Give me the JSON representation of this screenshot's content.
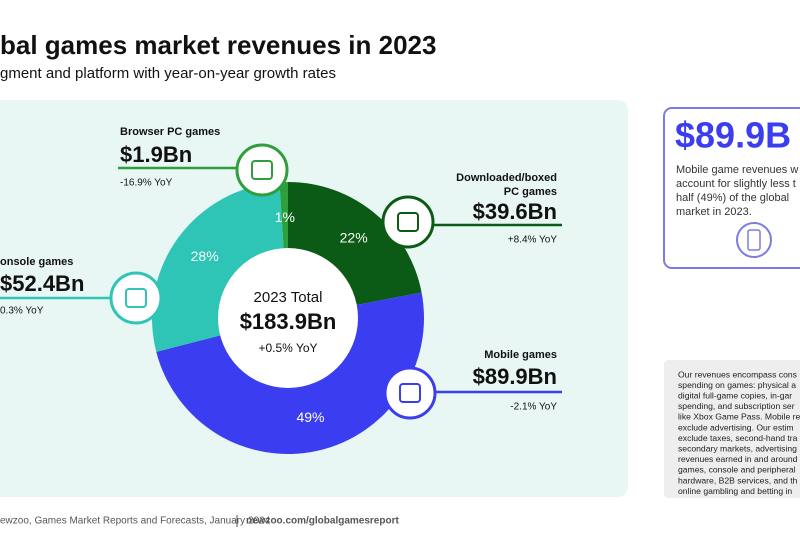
{
  "chart_data": {
    "type": "pie",
    "title": "bal games market revenues in 2023",
    "subtitle": "gment and platform with year-on-year growth rates",
    "categories": [
      [
        "Downloaded/boxed",
        "PC games"
      ],
      [
        "Mobile games"
      ],
      [
        "onsole games"
      ],
      [
        "Browser PC games"
      ]
    ],
    "values": [
      22,
      49,
      28,
      1
    ],
    "value_labels": [
      "22%",
      "49%",
      "28%",
      "1%"
    ],
    "colors": [
      "#0b5a16",
      "#3b3df0",
      "#2ec4b6",
      "#2f9e3c"
    ],
    "revenues": [
      "$39.6Bn",
      "$89.9Bn",
      "$52.4Bn",
      "$1.9Bn"
    ],
    "growth": [
      "+8.4% YoY",
      "-2.1% YoY",
      "0.3% YoY",
      "-16.9% YoY"
    ],
    "center": {
      "label": "2023 Total",
      "total": "$183.9Bn",
      "growth": "+0.5% YoY"
    }
  },
  "highlight": {
    "value": "$89.9B",
    "lines": [
      "Mobile game revenues w",
      "account for slightly less t",
      "half (49%) of the global",
      "market in 2023."
    ]
  },
  "notes": [
    "Our revenues encompass cons",
    "spending on games: physical a",
    "digital full-game copies, in-gar",
    "spending, and subscription ser",
    "like Xbox Game Pass. Mobile re",
    "exclude advertising. Our estim",
    "exclude taxes, second-hand tra",
    "secondary markets, advertising",
    "revenues earned in and around",
    "games, console and peripheral",
    "hardware, B2B services, and th",
    "online gambling and betting in"
  ],
  "footer": {
    "source": "ewzoo, Games Market Reports and Forecasts, January 2024",
    "url": "newzoo.com/globalgamesreport"
  }
}
